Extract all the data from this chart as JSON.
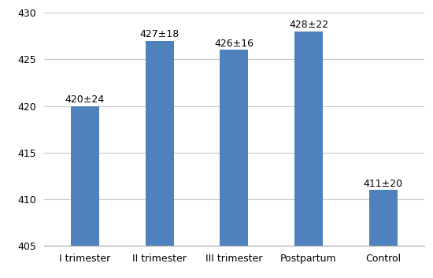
{
  "categories": [
    "I trimester",
    "II trimester",
    "III trimester",
    "Postpartum",
    "Control"
  ],
  "values": [
    420,
    427,
    426,
    428,
    411
  ],
  "labels": [
    "420±24",
    "427±18",
    "426±16",
    "428±22",
    "411±20"
  ],
  "bar_color": "#4F81BD",
  "ylim": [
    405,
    430
  ],
  "yticks": [
    405,
    410,
    415,
    420,
    425,
    430
  ],
  "background_color": "#ffffff",
  "grid_color": "#c8c8c8",
  "label_fontsize": 9.0,
  "tick_fontsize": 9.0,
  "bar_width": 0.38,
  "figsize": [
    5.5,
    3.53
  ],
  "dpi": 100
}
